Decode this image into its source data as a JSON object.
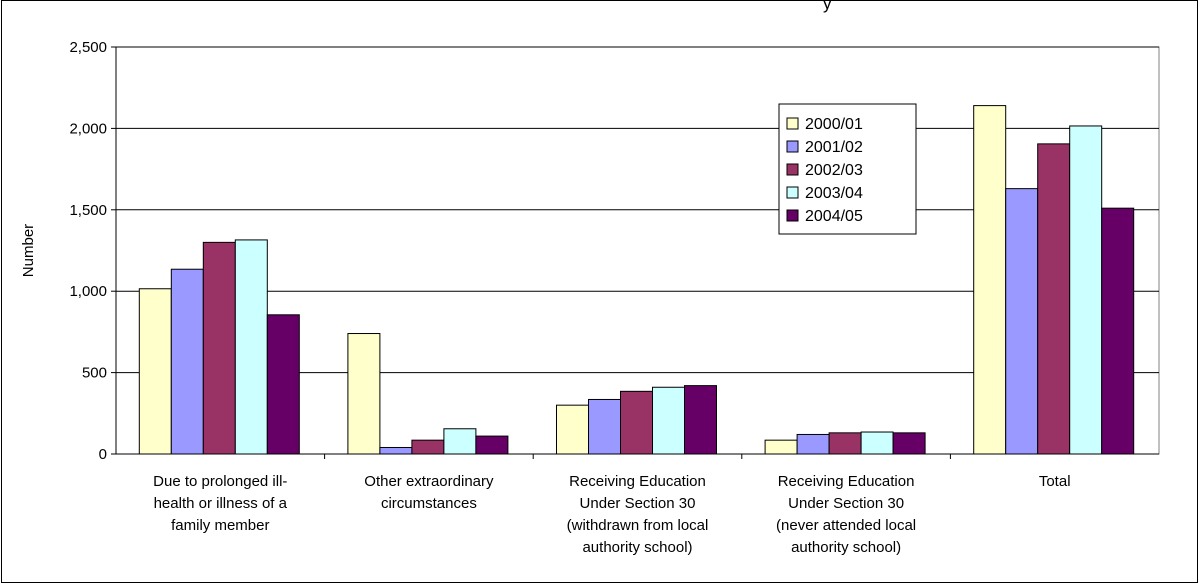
{
  "title_fragment": "y",
  "chart_data": {
    "type": "bar",
    "categories": [
      "Due to prolonged ill-|health or illness of a|family member",
      "Other extraordinary|circumstances",
      "Receiving Education|Under Section 30|(withdrawn from local|authority school)",
      "Receiving Education|Under Section 30|(never attended local|authority school)",
      "Total"
    ],
    "series": [
      {
        "name": "2000/01",
        "color": "#FFFFCC",
        "values": [
          1015,
          740,
          300,
          85,
          2140
        ]
      },
      {
        "name": "2001/02",
        "color": "#9999FF",
        "values": [
          1135,
          40,
          335,
          120,
          1630
        ]
      },
      {
        "name": "2002/03",
        "color": "#993366",
        "values": [
          1300,
          85,
          385,
          130,
          1905
        ]
      },
      {
        "name": "2003/04",
        "color": "#CCFFFF",
        "values": [
          1315,
          155,
          410,
          135,
          2015
        ]
      },
      {
        "name": "2004/05",
        "color": "#660066",
        "values": [
          855,
          110,
          420,
          130,
          1510
        ]
      }
    ],
    "ylabel": "Number",
    "xlabel": "",
    "ylim": [
      0,
      2500
    ],
    "yticks": [
      0,
      500,
      1000,
      1500,
      2000,
      2500
    ],
    "ytick_labels": [
      "0",
      "500",
      "1,000",
      "1,500",
      "2,000",
      "2,500"
    ],
    "grid": true,
    "legend_position": "upper-right-inside"
  }
}
